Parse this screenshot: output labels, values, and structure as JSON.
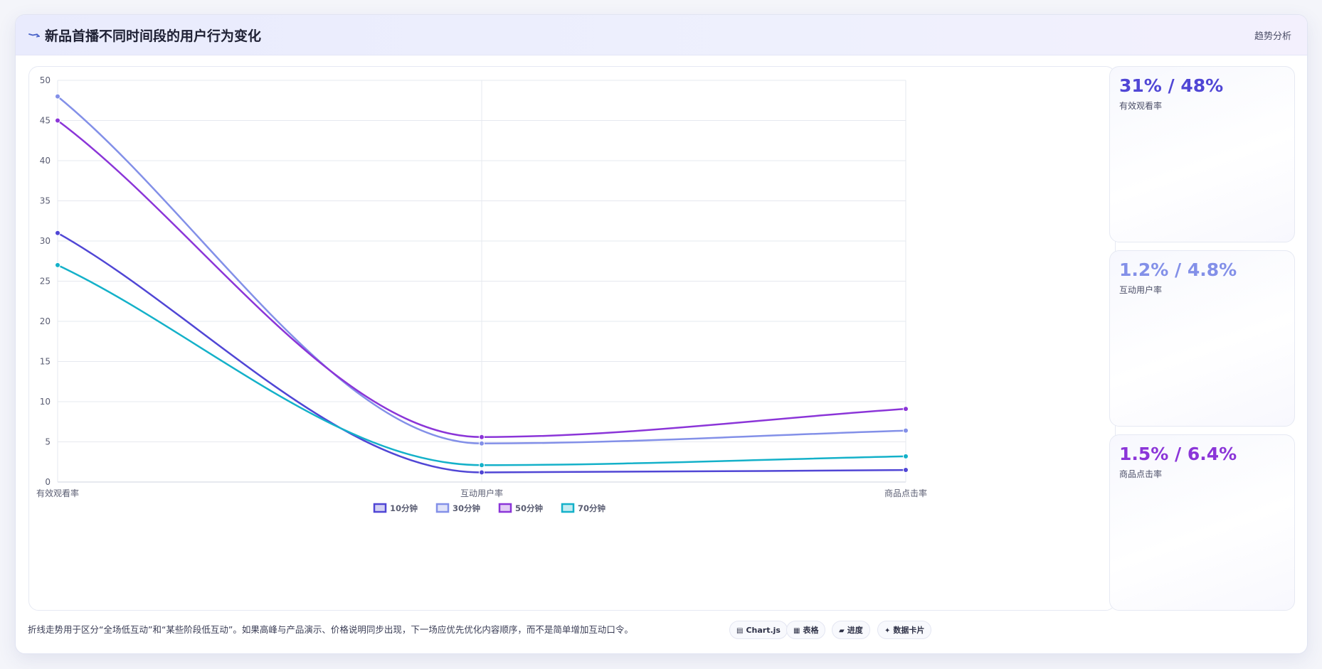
{
  "header": {
    "title": "新品首播不同时间段的用户行为变化",
    "right_label": "趋势分析",
    "icon": "trend-line-icon"
  },
  "stats": [
    {
      "value": "31% / 48%",
      "label": "有效观看率",
      "color": "#5046d5"
    },
    {
      "value": "1.2% / 4.8%",
      "label": "互动用户率",
      "color": "#8390e8"
    },
    {
      "value": "1.5% / 6.4%",
      "label": "商品点击率",
      "color": "#8b35d8"
    }
  ],
  "footnote": "折线走势用于区分“全场低互动”和“某些阶段低互动”。如果高峰与产品演示、价格说明同步出现，下一场应优先优化内容顺序，而不是简单增加互动口令。",
  "tags": [
    {
      "icon": "chart-icon",
      "glyph": "▤",
      "label": "Chart.js"
    },
    {
      "icon": "table-icon",
      "glyph": "▦",
      "label": "表格"
    },
    {
      "icon": "progress-icon",
      "glyph": "▰",
      "label": "进度"
    },
    {
      "icon": "sparkle-icon",
      "glyph": "✦",
      "label": "数据卡片"
    }
  ],
  "chart_data": {
    "type": "line",
    "categories": [
      "有效观看率",
      "互动用户率",
      "商品点击率"
    ],
    "ylim": [
      0,
      50
    ],
    "yticks": [
      0,
      5,
      10,
      15,
      20,
      25,
      30,
      35,
      40,
      45,
      50
    ],
    "grid": true,
    "legend_position": "bottom",
    "series": [
      {
        "name": "10分钟",
        "values": [
          31,
          1.2,
          1.5
        ],
        "color": "#5046d5"
      },
      {
        "name": "30分钟",
        "values": [
          48,
          4.8,
          6.4
        ],
        "color": "#8390e8"
      },
      {
        "name": "50分钟",
        "values": [
          45,
          5.6,
          9.1
        ],
        "color": "#8b35d8"
      },
      {
        "name": "70分钟",
        "values": [
          27,
          2.1,
          3.2
        ],
        "color": "#14b1c9"
      }
    ]
  }
}
